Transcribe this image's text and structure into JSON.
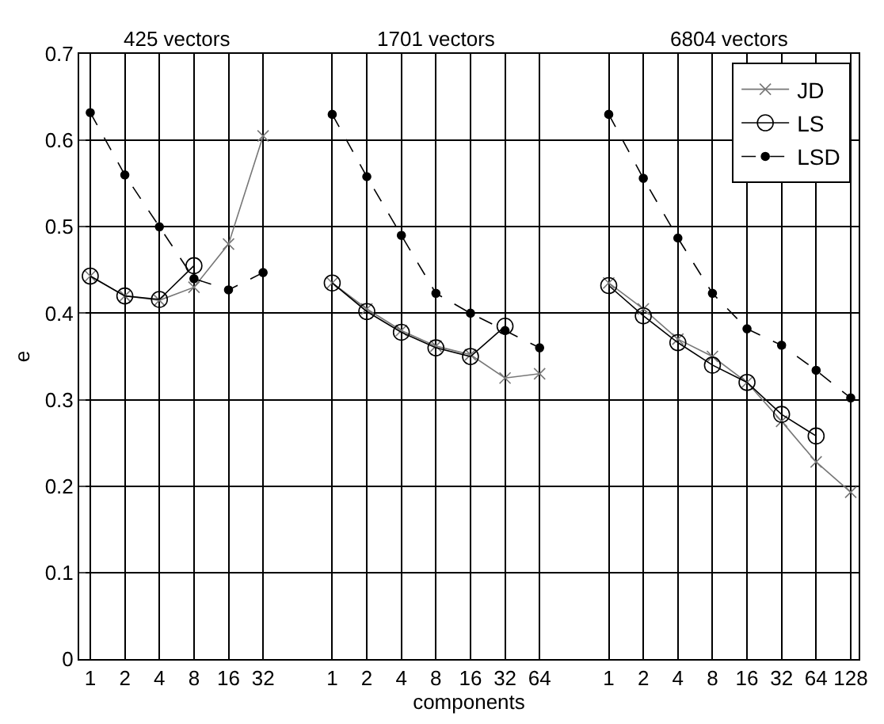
{
  "chart_data": {
    "type": "line",
    "categories": [
      "1",
      "2",
      "4",
      "8",
      "16",
      "32",
      null,
      "1",
      "2",
      "4",
      "8",
      "16",
      "32",
      "64",
      null,
      "1",
      "2",
      "4",
      "8",
      "16",
      "32",
      "64",
      "128"
    ],
    "series": [
      {
        "name": "JD",
        "color": "#777777",
        "marker": "cross",
        "line_style": "solid",
        "values": [
          0.443,
          0.42,
          0.415,
          0.43,
          0.48,
          0.605,
          null,
          0.435,
          0.405,
          0.38,
          0.362,
          0.352,
          0.325,
          0.33,
          null,
          0.435,
          0.405,
          0.37,
          0.35,
          0.32,
          0.275,
          0.228,
          0.193
        ]
      },
      {
        "name": "LS",
        "color": "#000000",
        "marker": "circle",
        "line_style": "solid",
        "values": [
          0.443,
          0.42,
          0.416,
          0.455,
          null,
          null,
          null,
          0.435,
          0.402,
          0.378,
          0.36,
          0.35,
          0.385,
          null,
          null,
          0.432,
          0.397,
          0.366,
          0.34,
          0.32,
          0.283,
          0.258,
          null
        ]
      },
      {
        "name": "LSD",
        "color": "#000000",
        "marker": "dot",
        "line_style": "dashed",
        "values": [
          0.632,
          0.56,
          0.5,
          0.44,
          0.427,
          0.447,
          null,
          0.63,
          0.558,
          0.49,
          0.423,
          0.4,
          0.38,
          0.36,
          null,
          0.63,
          0.556,
          0.487,
          0.423,
          0.382,
          0.363,
          0.334,
          0.302
        ]
      }
    ],
    "xlabel": "components",
    "ylabel": "e",
    "ylim": [
      0,
      0.7
    ],
    "yticks": [
      0,
      0.1,
      0.2,
      0.3,
      0.4,
      0.5,
      0.6,
      0.7
    ],
    "annotations": [
      "425 vectors",
      "1701 vectors",
      "6804 vectors"
    ],
    "grid": true,
    "legend": "top right"
  }
}
